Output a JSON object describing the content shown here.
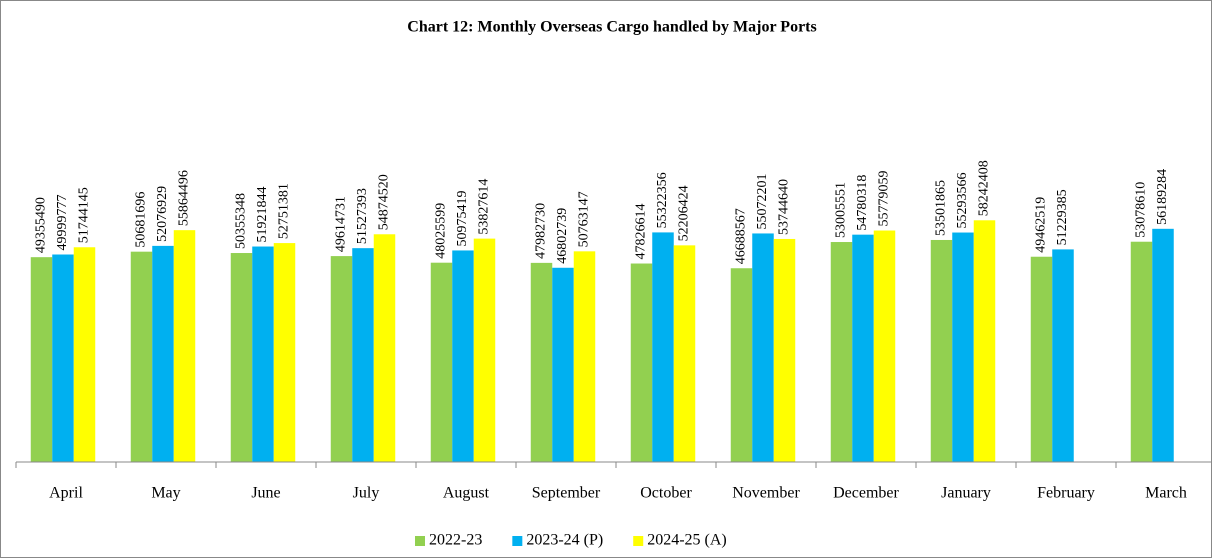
{
  "chart_data": {
    "type": "bar",
    "title": "Chart 12: Monthly Overseas Cargo handled by Major Ports",
    "categories": [
      "April",
      "May",
      "June",
      "July",
      "August",
      "September",
      "October",
      "November",
      "December",
      "January",
      "February",
      "March"
    ],
    "series": [
      {
        "name": "2022-23",
        "color": "#92d050",
        "values": [
          49355490,
          50681696,
          50355348,
          49614731,
          48025599,
          47982730,
          47826614,
          46688567,
          53005551,
          53501865,
          49462519,
          53078610
        ]
      },
      {
        "name": "2023-24 (P)",
        "color": "#00b0f0",
        "values": [
          49999777,
          52076929,
          51921844,
          51527393,
          50975419,
          46802739,
          55322356,
          55072201,
          54780318,
          55293566,
          51229385,
          56189284
        ]
      },
      {
        "name": "2024-25 (A)",
        "color": "#ffff00",
        "values": [
          51744145,
          55864496,
          52751381,
          54874520,
          53827614,
          50763147,
          52206424,
          53744640,
          55779059,
          58242408,
          null,
          null
        ]
      }
    ],
    "ylim": [
      0,
      100000000
    ],
    "legend": "bottom"
  }
}
